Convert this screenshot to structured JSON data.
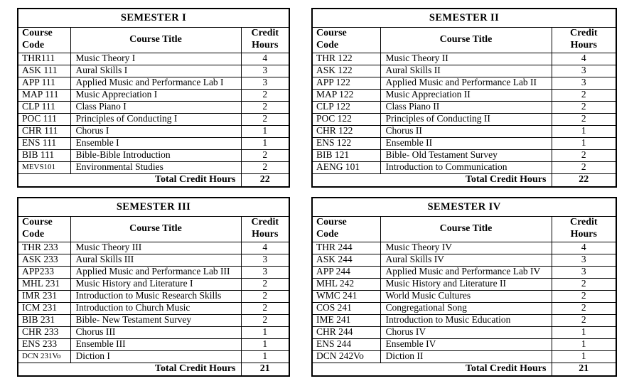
{
  "colors": {
    "text": "#000000",
    "border": "#000000",
    "background": "#ffffff"
  },
  "columns": {
    "code": "Course Code",
    "title": "Course Title",
    "credit": "Credit Hours"
  },
  "labels": {
    "total": "Total Credit Hours"
  },
  "tables": [
    {
      "title": "SEMESTER I",
      "total": "22",
      "rows": [
        {
          "code": "THR111",
          "title": "Music Theory I",
          "credit": "4"
        },
        {
          "code": "ASK 111",
          "title": "Aural Skills I",
          "credit": "3"
        },
        {
          "code": "APP 111",
          "title": "Applied Music and Performance Lab I",
          "credit": "3"
        },
        {
          "code": "MAP 111",
          "title": "Music Appreciation I",
          "credit": "2"
        },
        {
          "code": "CLP 111",
          "title": "Class Piano I",
          "credit": "2"
        },
        {
          "code": "POC 111",
          "title": "Principles of Conducting I",
          "credit": "2"
        },
        {
          "code": "CHR 111",
          "title": "Chorus I",
          "credit": "1"
        },
        {
          "code": "ENS 111",
          "title": "Ensemble I",
          "credit": "1"
        },
        {
          "code": "BIB 111",
          "title": "Bible-Bible Introduction",
          "credit": "2"
        },
        {
          "code": "MEVS101",
          "title": "Environmental Studies",
          "credit": "2",
          "small": true
        }
      ]
    },
    {
      "title": "SEMESTER II",
      "total": "22",
      "rows": [
        {
          "code": "THR 122",
          "title": "Music Theory II",
          "credit": "4"
        },
        {
          "code": "ASK 122",
          "title": "Aural Skills II",
          "credit": "3"
        },
        {
          "code": "APP 122",
          "title": "Applied Music and Performance Lab II",
          "credit": "3"
        },
        {
          "code": "MAP 122",
          "title": "Music Appreciation II",
          "credit": "2"
        },
        {
          "code": "CLP 122",
          "title": "Class Piano II",
          "credit": "2"
        },
        {
          "code": "POC 122",
          "title": "Principles of Conducting II",
          "credit": "2"
        },
        {
          "code": "CHR 122",
          "title": "Chorus II",
          "credit": "1"
        },
        {
          "code": "ENS 122",
          "title": "Ensemble II",
          "credit": "1"
        },
        {
          "code": "BIB 121",
          "title": "Bible- Old Testament Survey",
          "credit": "2"
        },
        {
          "code": "AENG 101",
          "title": "Introduction to Communication",
          "credit": "2"
        }
      ]
    },
    {
      "title": "SEMESTER III",
      "total": "21",
      "rows": [
        {
          "code": "THR 233",
          "title": "Music Theory III",
          "credit": "4"
        },
        {
          "code": "ASK 233",
          "title": "Aural Skills III",
          "credit": "3"
        },
        {
          "code": "APP233",
          "title": "Applied Music and Performance Lab III",
          "credit": "3"
        },
        {
          "code": "MHL 231",
          "title": "Music History and Literature I",
          "credit": "2"
        },
        {
          "code": "IMR 231",
          "title": "Introduction to Music Research Skills",
          "credit": "2"
        },
        {
          "code": "ICM 231",
          "title": "Introduction to Church Music",
          "credit": "2"
        },
        {
          "code": "BIB 231",
          "title": "Bible- New Testament Survey",
          "credit": "2"
        },
        {
          "code": "CHR 233",
          "title": "Chorus III",
          "credit": "1"
        },
        {
          "code": "ENS 233",
          "title": "Ensemble III",
          "credit": "1"
        },
        {
          "code": "DCN 231Vo",
          "title": "Diction I",
          "credit": "1",
          "small": true
        }
      ]
    },
    {
      "title": "SEMESTER IV",
      "total": "21",
      "rows": [
        {
          "code": "THR 244",
          "title": "Music Theory IV",
          "credit": "4"
        },
        {
          "code": "ASK 244",
          "title": "Aural Skills IV",
          "credit": "3"
        },
        {
          "code": "APP 244",
          "title": "Applied Music and Performance Lab IV",
          "credit": "3"
        },
        {
          "code": "MHL 242",
          "title": "Music History and Literature II",
          "credit": "2"
        },
        {
          "code": "WMC 241",
          "title": "World Music Cultures",
          "credit": "2"
        },
        {
          "code": "COS 241",
          "title": "Congregational Song",
          "credit": "2"
        },
        {
          "code": "IME 241",
          "title": "Introduction to Music Education",
          "credit": "2"
        },
        {
          "code": "CHR 244",
          "title": "Chorus IV",
          "credit": "1"
        },
        {
          "code": "ENS 244",
          "title": "Ensemble IV",
          "credit": "1"
        },
        {
          "code": "DCN 242Vo",
          "title": "Diction II",
          "credit": "1"
        }
      ]
    }
  ]
}
